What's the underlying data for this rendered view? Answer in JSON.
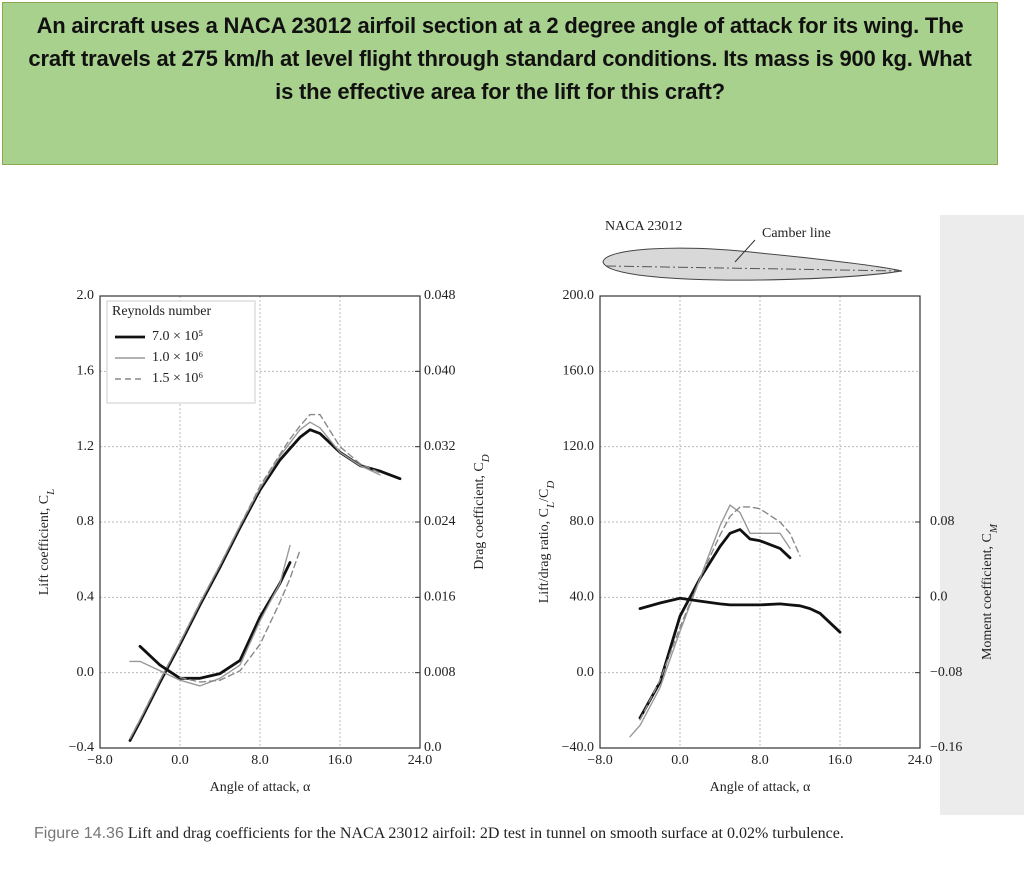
{
  "question": "An aircraft uses a NACA 23012 airfoil section at a 2 degree angle of attack for its wing. The craft travels at 275 km/h at level flight through standard conditions. Its mass is 900 kg. What is the effective area for the lift for this craft?",
  "caption": {
    "label": "Figure 14.36",
    "text": "Lift and drag coefficients for the NACA 23012 airfoil: 2D test in tunnel on smooth surface at 0.02% turbulence."
  },
  "chart_data": [
    {
      "type": "line",
      "grid": true,
      "xlabel": "Angle of attack, α",
      "ylabel": [
        {
          "text": "Lift coefficient, C"
        },
        {
          "sub": "L"
        }
      ],
      "y2label": [
        {
          "text": "Drag coefficient, C"
        },
        {
          "sub": "D"
        }
      ],
      "xlim": [
        -8,
        24
      ],
      "xticks": [
        {
          "value": -8,
          "label": "−8.0"
        },
        {
          "value": 0,
          "label": "0.0"
        },
        {
          "value": 8,
          "label": "8.0"
        },
        {
          "value": 16,
          "label": "16.0"
        },
        {
          "value": 24,
          "label": "24.0"
        }
      ],
      "ylim": [
        -0.4,
        2.0
      ],
      "yticks": [
        {
          "value": -0.4,
          "label": "−0.4"
        },
        {
          "value": 0,
          "label": "0.0"
        },
        0.4,
        0.8,
        1.2,
        1.6,
        {
          "value": 2,
          "label": "2.0"
        }
      ],
      "y2lim": [
        0,
        0.048
      ],
      "y2ticks": [
        {
          "value": 0,
          "label": "0.0"
        },
        0.008,
        0.016,
        0.024,
        0.032,
        {
          "value": 0.04,
          "label": "0.040"
        },
        0.048
      ],
      "legend": {
        "title": "Reynolds number",
        "corner": "top-left"
      },
      "x": [
        -5,
        -4,
        -2,
        0,
        2,
        4,
        6,
        8,
        10,
        11,
        12,
        13,
        14,
        16,
        18,
        20,
        22
      ],
      "series": [
        {
          "name": "7.0 × 10⁵",
          "color": "#111111",
          "width": 2.8,
          "dash": "none",
          "values": [
            -0.36,
            -0.26,
            -0.05,
            0.15,
            0.36,
            0.56,
            0.77,
            0.97,
            1.13,
            1.19,
            1.25,
            1.29,
            1.27,
            1.17,
            1.1,
            1.07,
            1.03
          ]
        },
        {
          "name": "1.0 × 10⁶",
          "color": "#999999",
          "width": 1.4,
          "dash": "none",
          "values": [
            -0.35,
            -0.25,
            -0.04,
            0.16,
            0.37,
            0.57,
            0.78,
            0.98,
            1.15,
            1.22,
            1.29,
            1.33,
            1.3,
            1.17,
            1.1,
            1.05,
            null
          ]
        },
        {
          "name": "1.5 × 10⁶",
          "color": "#888888",
          "width": 1.4,
          "dash": "6 4",
          "values": [
            -0.35,
            -0.25,
            -0.04,
            0.16,
            0.37,
            0.57,
            0.78,
            0.99,
            1.16,
            1.24,
            1.31,
            1.37,
            1.37,
            1.2,
            1.11,
            1.06,
            null
          ]
        },
        {
          "axis": "y2",
          "color": "#111111",
          "width": 2.8,
          "dash": "none",
          "values": [
            null,
            0.0108,
            0.0088,
            0.0074,
            0.0074,
            0.0079,
            0.0093,
            0.0139,
            0.0175,
            0.0197,
            null,
            null,
            null,
            null,
            null,
            null,
            null
          ]
        },
        {
          "axis": "y2",
          "color": "#999999",
          "width": 1.4,
          "dash": "none",
          "values": [
            0.0092,
            0.0092,
            0.0082,
            0.0072,
            0.0066,
            0.0074,
            0.0088,
            0.0135,
            0.0175,
            0.0215,
            null,
            null,
            null,
            null,
            null,
            null,
            null
          ]
        },
        {
          "axis": "y2",
          "color": "#888888",
          "width": 1.4,
          "dash": "6 4",
          "values": [
            null,
            null,
            null,
            0.0075,
            0.007,
            0.0072,
            0.0082,
            0.011,
            0.0155,
            0.018,
            0.021,
            null,
            null,
            null,
            null,
            null,
            null
          ]
        }
      ]
    },
    {
      "type": "line",
      "grid": true,
      "annotations": [
        "NACA 23012",
        "Camber line"
      ],
      "xlabel": "Angle of attack, α",
      "ylabel": [
        {
          "text": "Lift/drag ratio, C"
        },
        {
          "sub": "L"
        },
        {
          "text": "/C"
        },
        {
          "sub": "D"
        }
      ],
      "y2label": [
        {
          "text": "Moment coefficient, C"
        },
        {
          "sub": "M"
        }
      ],
      "xlim": [
        -8,
        24
      ],
      "xticks": [
        {
          "value": -8,
          "label": "−8.0"
        },
        {
          "value": 0,
          "label": "0.0"
        },
        {
          "value": 8,
          "label": "8.0"
        },
        {
          "value": 16,
          "label": "16.0"
        },
        {
          "value": 24,
          "label": "24.0"
        }
      ],
      "ylim": [
        -40,
        200
      ],
      "yticks": [
        {
          "value": -40,
          "label": "−40.0"
        },
        {
          "value": 0,
          "label": "0.0"
        },
        {
          "value": 40,
          "label": "40.0"
        },
        {
          "value": 80,
          "label": "80.0"
        },
        {
          "value": 120,
          "label": "120.0"
        },
        {
          "value": 160,
          "label": "160.0"
        },
        {
          "value": 200,
          "label": "200.0"
        }
      ],
      "y2lim": [
        -0.16,
        0.32
      ],
      "y2ticks": [
        {
          "value": -0.16,
          "label": "−0.16"
        },
        {
          "value": -0.08,
          "label": "−0.08"
        },
        {
          "value": 0,
          "label": "0.0"
        },
        0.08
      ],
      "x": [
        -5,
        -4,
        -2,
        0,
        2,
        4,
        5,
        6,
        7,
        8,
        10,
        11,
        12,
        13,
        14,
        16
      ],
      "series": [
        {
          "color": "#111111",
          "width": 2.8,
          "dash": "none",
          "values": [
            null,
            -24,
            -5,
            30,
            50,
            67,
            74,
            76,
            71,
            70,
            66,
            61,
            null,
            null,
            null,
            null
          ]
        },
        {
          "color": "#999999",
          "width": 1.4,
          "dash": "none",
          "values": [
            -34,
            -28,
            -8,
            22,
            50,
            78,
            89,
            85,
            74,
            74,
            74,
            66,
            null,
            null,
            null,
            null
          ]
        },
        {
          "color": "#888888",
          "width": 1.4,
          "dash": "6 4",
          "values": [
            null,
            -25,
            -4,
            24,
            50,
            73,
            83,
            88,
            88,
            87,
            80,
            74,
            62,
            null,
            null,
            null
          ]
        },
        {
          "axis": "y2",
          "color": "#111111",
          "width": 2.8,
          "dash": "none",
          "values": [
            null,
            -0.012,
            -0.006,
            -0.001,
            -0.004,
            -0.007,
            -0.008,
            -0.008,
            -0.008,
            -0.008,
            -0.007,
            -0.008,
            -0.009,
            -0.012,
            -0.017,
            -0.037
          ]
        }
      ]
    }
  ]
}
